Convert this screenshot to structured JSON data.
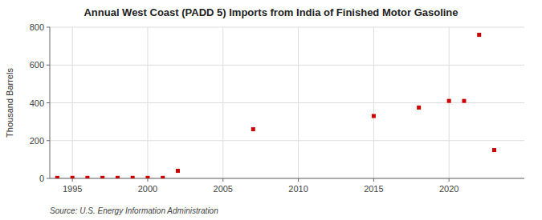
{
  "chart_data": {
    "type": "scatter",
    "title": "Annual West Coast (PADD 5) Imports from India of Finished Motor Gasoline",
    "y_label": "Thousand Barrels",
    "source": "Source: U.S. Energy Information Administration",
    "x": [
      1994,
      1995,
      1996,
      1997,
      1998,
      1999,
      2000,
      2001,
      2002,
      2007,
      2015,
      2018,
      2020,
      2021,
      2022,
      2023
    ],
    "values": [
      3,
      3,
      3,
      3,
      3,
      3,
      3,
      3,
      40,
      260,
      330,
      375,
      410,
      410,
      760,
      150
    ],
    "color": "#cc0000",
    "marker": "square",
    "xlim": [
      1993.5,
      2025
    ],
    "ylim": [
      0,
      800
    ],
    "xticks": [
      1995,
      2000,
      2005,
      2010,
      2015,
      2020
    ],
    "yticks": [
      0,
      200,
      400,
      600,
      800
    ],
    "grid": true
  }
}
